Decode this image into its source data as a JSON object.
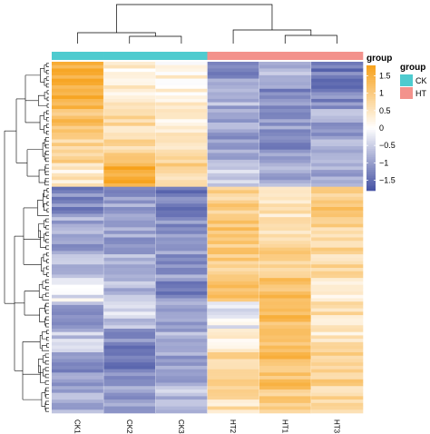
{
  "chart_data": {
    "type": "heatmap",
    "columns": [
      "CK1",
      "CK2",
      "CK3",
      "HT2",
      "HT1",
      "HT3"
    ],
    "column_groups": [
      "CK",
      "CK",
      "CK",
      "HT",
      "HT",
      "HT"
    ],
    "value_range": [
      -1.8,
      1.8
    ],
    "colorbar": {
      "title": "group",
      "ticks": [
        1.5,
        1,
        0.5,
        0,
        -0.5,
        -1,
        -1.5
      ],
      "tick_labels": [
        "1.5",
        "1",
        "0.5",
        "0",
        "−0.5",
        "−1",
        "−1.5"
      ],
      "colors": {
        "low": "#4451a3",
        "mid": "#ffffff",
        "high": "#f7a11a"
      }
    },
    "annotation_legend": {
      "title": "group",
      "entries": [
        {
          "label": "CK",
          "color": "#4ecbcf"
        },
        {
          "label": "HT",
          "color": "#f3928c"
        }
      ]
    },
    "row_blocks": [
      {
        "rows": 8,
        "values": [
          1.6,
          0.3,
          0.2,
          -1.1,
          -0.8,
          -1.4
        ]
      },
      {
        "rows": 6,
        "values": [
          1.4,
          0.4,
          0.3,
          -0.8,
          -1.2,
          -1.2
        ]
      },
      {
        "rows": 8,
        "values": [
          1.2,
          0.7,
          0.4,
          -0.9,
          -1.0,
          -0.9
        ]
      },
      {
        "rows": 8,
        "values": [
          0.9,
          0.8,
          0.6,
          -1.0,
          -1.1,
          -0.9
        ]
      },
      {
        "rows": 7,
        "values": [
          0.4,
          1.6,
          0.8,
          -0.6,
          -0.9,
          -0.8
        ]
      },
      {
        "rows": 9,
        "values": [
          -1.2,
          -1.0,
          -1.3,
          0.9,
          0.5,
          1.0
        ]
      },
      {
        "rows": 10,
        "values": [
          -0.9,
          -1.0,
          -1.1,
          1.1,
          0.7,
          0.8
        ]
      },
      {
        "rows": 8,
        "values": [
          -0.6,
          -0.8,
          -1.0,
          0.9,
          0.9,
          0.7
        ]
      },
      {
        "rows": 7,
        "values": [
          -0.2,
          -0.7,
          -1.2,
          1.2,
          1.3,
          0.4
        ]
      },
      {
        "rows": 8,
        "values": [
          -0.9,
          -0.5,
          -1.0,
          -0.2,
          1.3,
          0.6
        ]
      },
      {
        "rows": 7,
        "values": [
          -0.6,
          -1.2,
          -0.8,
          0.3,
          1.1,
          0.5
        ]
      },
      {
        "rows": 10,
        "values": [
          -1.1,
          -1.3,
          -0.9,
          0.8,
          1.2,
          0.9
        ]
      },
      {
        "rows": 8,
        "values": [
          -0.8,
          -1.0,
          -0.7,
          0.6,
          1.0,
          0.8
        ]
      }
    ]
  }
}
